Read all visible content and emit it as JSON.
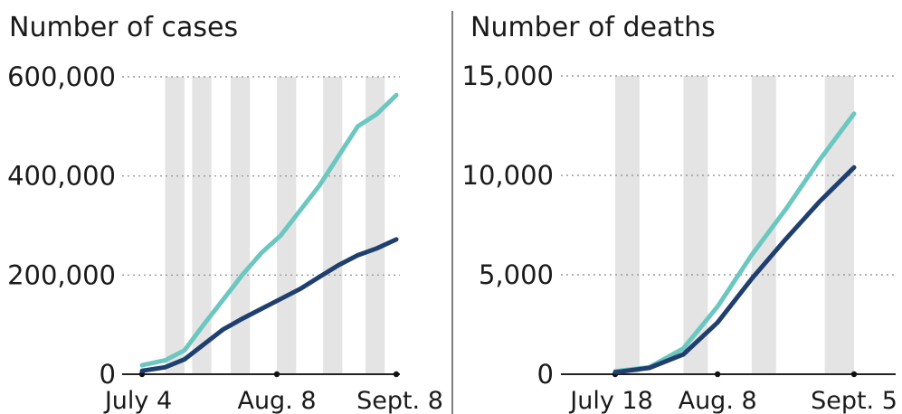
{
  "colors": {
    "series_a": "#6cc7c0",
    "series_b": "#1f3f6e",
    "band": "#e4e4e4",
    "grid": "#9a9a9a"
  },
  "chart_data": [
    {
      "type": "line",
      "title": "Number of cases",
      "ylim": [
        0,
        600000
      ],
      "yticks": [
        0,
        200000,
        400000,
        600000
      ],
      "ytick_labels": [
        "0",
        "200,000",
        "400,000",
        "600,000"
      ],
      "xlim": [
        "2020-07-04",
        "2020-09-08"
      ],
      "xticks": [
        "2020-07-04",
        "2020-08-08",
        "2020-09-08"
      ],
      "xtick_labels": [
        "July 4",
        "Aug. 8",
        "Sept. 8"
      ],
      "grid": true,
      "shaded_weeks": [
        [
          "2020-07-10",
          "2020-07-15"
        ],
        [
          "2020-07-17",
          "2020-07-22"
        ],
        [
          "2020-07-27",
          "2020-08-01"
        ],
        [
          "2020-08-08",
          "2020-08-13"
        ],
        [
          "2020-08-20",
          "2020-08-25"
        ],
        [
          "2020-08-31",
          "2020-09-05"
        ]
      ],
      "series": [
        {
          "x": [
            "2020-07-04",
            "2020-07-10",
            "2020-07-15",
            "2020-07-20",
            "2020-07-25",
            "2020-07-30",
            "2020-08-04",
            "2020-08-09",
            "2020-08-14",
            "2020-08-19",
            "2020-08-24",
            "2020-08-29",
            "2020-09-03",
            "2020-09-08"
          ],
          "values": [
            18000,
            28000,
            48000,
            100000,
            150000,
            200000,
            245000,
            280000,
            330000,
            380000,
            440000,
            500000,
            525000,
            563000
          ]
        },
        {
          "x": [
            "2020-07-04",
            "2020-07-10",
            "2020-07-15",
            "2020-07-20",
            "2020-07-25",
            "2020-07-30",
            "2020-08-04",
            "2020-08-09",
            "2020-08-14",
            "2020-08-19",
            "2020-08-24",
            "2020-08-29",
            "2020-09-03",
            "2020-09-08"
          ],
          "values": [
            7000,
            14000,
            30000,
            60000,
            90000,
            112000,
            132000,
            152000,
            172000,
            196000,
            220000,
            240000,
            254000,
            272000
          ]
        }
      ]
    },
    {
      "type": "line",
      "title": "Number of deaths",
      "ylim": [
        0,
        15000
      ],
      "yticks": [
        0,
        5000,
        10000,
        15000
      ],
      "ytick_labels": [
        "0",
        "5,000",
        "10,000",
        "15,000"
      ],
      "xlim": [
        "2020-07-18",
        "2020-09-05"
      ],
      "xticks": [
        "2020-07-18",
        "2020-08-08",
        "2020-09-05"
      ],
      "xtick_labels": [
        "July 18",
        "Aug. 8",
        "Sept. 5"
      ],
      "grid": true,
      "shaded_weeks": [
        [
          "2020-07-18",
          "2020-07-23"
        ],
        [
          "2020-08-01",
          "2020-08-06"
        ],
        [
          "2020-08-15",
          "2020-08-20"
        ],
        [
          "2020-08-30",
          "2020-09-05"
        ]
      ],
      "series": [
        {
          "x": [
            "2020-07-18",
            "2020-07-25",
            "2020-08-01",
            "2020-08-08",
            "2020-08-15",
            "2020-08-22",
            "2020-08-29",
            "2020-09-05"
          ],
          "values": [
            150,
            350,
            1300,
            3400,
            6000,
            8300,
            10800,
            13100
          ]
        },
        {
          "x": [
            "2020-07-18",
            "2020-07-25",
            "2020-08-01",
            "2020-08-08",
            "2020-08-15",
            "2020-08-22",
            "2020-08-29",
            "2020-09-05"
          ],
          "values": [
            100,
            320,
            1000,
            2600,
            4800,
            6800,
            8700,
            10400
          ]
        }
      ]
    }
  ]
}
